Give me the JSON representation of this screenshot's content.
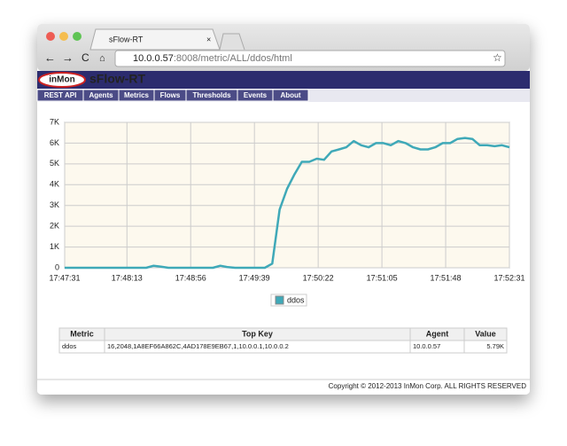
{
  "browser": {
    "tab_title": "sFlow-RT",
    "url_host": "10.0.0.57",
    "url_rest": ":8008/metric/ALL/ddos/html"
  },
  "app": {
    "logo": "inMon",
    "title": "sFlow-RT",
    "nav": [
      "REST API",
      "Agents",
      "Metrics",
      "Flows",
      "Thresholds",
      "Events",
      "About"
    ]
  },
  "chart_data": {
    "type": "line",
    "x": [
      "17:47:31",
      "17:47:36",
      "17:47:41",
      "17:47:46",
      "17:47:51",
      "17:47:56",
      "17:48:01",
      "17:48:06",
      "17:48:11",
      "17:48:16",
      "17:48:21",
      "17:48:26",
      "17:48:31",
      "17:48:36",
      "17:48:41",
      "17:48:46",
      "17:48:51",
      "17:48:56",
      "17:49:01",
      "17:49:06",
      "17:49:11",
      "17:49:16",
      "17:49:21",
      "17:49:26",
      "17:49:31",
      "17:49:36",
      "17:49:41",
      "17:49:46",
      "17:49:51",
      "17:49:56",
      "17:50:01",
      "17:50:06",
      "17:50:11",
      "17:50:16",
      "17:50:21",
      "17:50:26",
      "17:50:31",
      "17:50:36",
      "17:50:41",
      "17:50:46",
      "17:50:51",
      "17:50:56",
      "17:51:01",
      "17:51:06",
      "17:51:11",
      "17:51:16",
      "17:51:21",
      "17:51:26",
      "17:51:31",
      "17:51:36",
      "17:51:41",
      "17:51:46",
      "17:51:51",
      "17:51:56",
      "17:52:01",
      "17:52:06",
      "17:52:11",
      "17:52:16",
      "17:52:21",
      "17:52:26",
      "17:52:31"
    ],
    "series": [
      {
        "name": "ddos",
        "color": "#3fa9b8",
        "values": [
          0,
          0,
          0,
          0,
          0,
          0,
          0,
          0,
          0,
          0,
          0,
          0,
          100,
          50,
          0,
          0,
          0,
          0,
          0,
          0,
          0,
          100,
          30,
          0,
          0,
          0,
          0,
          0,
          200,
          2800,
          3800,
          4500,
          5100,
          5100,
          5250,
          5200,
          5600,
          5700,
          5800,
          6100,
          5900,
          5800,
          6000,
          6000,
          5900,
          6100,
          6000,
          5800,
          5700,
          5700,
          5800,
          6000,
          6000,
          6200,
          6250,
          6200,
          5900,
          5900,
          5850,
          5900,
          5800
        ]
      }
    ],
    "xlim": [
      "17:47:31",
      "17:52:31"
    ],
    "xticks": [
      "17:47:31",
      "17:48:13",
      "17:48:56",
      "17:49:39",
      "17:50:22",
      "17:51:05",
      "17:51:48",
      "17:52:31"
    ],
    "ylim": [
      0,
      7000
    ],
    "yticks": [
      0,
      {
        "value": 1000,
        "label": "1K"
      },
      {
        "value": 2000,
        "label": "2K"
      },
      {
        "value": 3000,
        "label": "3K"
      },
      {
        "value": 4000,
        "label": "4K"
      },
      {
        "value": 5000,
        "label": "5K"
      },
      {
        "value": 6000,
        "label": "6K"
      },
      {
        "value": 7000,
        "label": "7K"
      }
    ],
    "grid": true
  },
  "table": {
    "header": [
      "Metric",
      "Top Key",
      "Agent",
      "Value"
    ],
    "rows": [
      [
        "ddos",
        "16,2048,1A8EF66A862C,4AD178E9EB67,1,10.0.0.1,10.0.0.2",
        "10.0.0.57",
        "5.79K"
      ]
    ]
  },
  "footer": "Copyright © 2012-2013 InMon Corp. ALL RIGHTS RESERVED"
}
